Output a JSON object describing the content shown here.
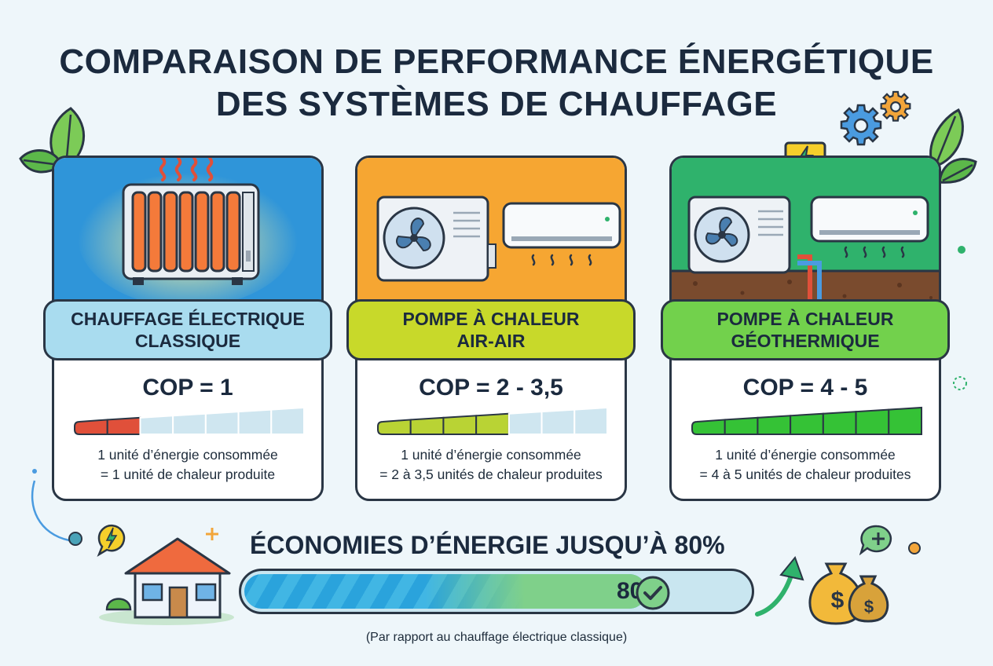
{
  "title_line1": "COMPARAISON DE PERFORMANCE ÉNERGÉTIQUE",
  "title_line2": "DES SYSTÈMES DE CHAUFFAGE",
  "cards": [
    {
      "name": "CHAUFFAGE ÉLECTRIQUE CLASSIQUE",
      "name_line1": "CHAUFFAGE ÉLECTRIQUE",
      "name_line2": "CLASSIQUE",
      "cop": "COP = 1",
      "desc_line1": "1 unité d’énergie consommée",
      "desc_line2": "= 1 unité de chaleur produite",
      "meter_filled_segments": 2,
      "meter_total_segments": 7,
      "scene_color": "#2f95d9",
      "banner_color": "#a9dcef",
      "meter_color": "#e0503a"
    },
    {
      "name": "POMPE À CHALEUR AIR-AIR",
      "name_line1": "POMPE À CHALEUR",
      "name_line2": "AIR-AIR",
      "cop": "COP = 2 - 3,5",
      "desc_line1": "1 unité d’énergie consommée",
      "desc_line2": "= 2 à 3,5 unités de chaleur produites",
      "meter_filled_segments": 4,
      "meter_total_segments": 7,
      "scene_color": "#f6a632",
      "banner_color": "#c8d92a",
      "meter_color": "#b9d334"
    },
    {
      "name": "POMPE À CHALEUR GÉOTHERMIQUE",
      "name_line1": "POMPE À CHALEUR",
      "name_line2": "GÉOTHERMIQUE",
      "cop": "COP = 4 - 5",
      "desc_line1": "1 unité d’énergie consommée",
      "desc_line2": "= 4 à 5 unités de chaleur produites",
      "meter_filled_segments": 7,
      "meter_total_segments": 7,
      "scene_color": "#2fb26c",
      "banner_color": "#72d14c",
      "meter_color": "#35c236"
    }
  ],
  "savings": {
    "title": "ÉCONOMIES D’ÉNERGIE JUSQU’À 80%",
    "percent_value": 80,
    "percent_label": "80%",
    "footnote": "(Par rapport au chauffage électrique classique)"
  },
  "icons": {
    "leaf": "leaf-icon",
    "gear": "gear-icon",
    "lightning": "lightning-icon",
    "house": "house-icon",
    "money_bag": "money-bag-icon",
    "check": "check-icon",
    "arrow_up": "arrow-up-icon",
    "plus": "plus-icon"
  },
  "colors": {
    "dark": "#1b2a3e",
    "bubble_yellow": "#f5cf2b",
    "bubble_green": "#7fd08a",
    "gear_blue": "#4a9be0",
    "gear_orange": "#f2a53a"
  }
}
